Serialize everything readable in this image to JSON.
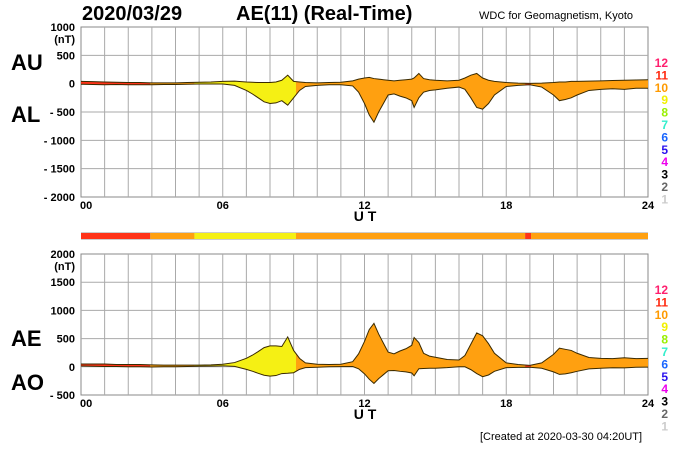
{
  "header": {
    "date": "2020/03/29",
    "title": "AE(11) (Real-Time)",
    "source": "WDC for Geomagnetism, Kyoto"
  },
  "footer": "[Created at 2020-03-30 04:20UT]",
  "chart_data": [
    {
      "type": "area",
      "name": "AU/AL",
      "series_labels": [
        "AU",
        "AL"
      ],
      "unit_label": "(nT)",
      "xlabel": "U T",
      "ylim": [
        -2000,
        1000
      ],
      "yticks": [
        1000,
        500,
        0,
        -500,
        -1000,
        -1500,
        -2000
      ],
      "ytick_labels": [
        "1000",
        "500",
        "0",
        "- 500",
        "- 1000",
        "- 1500",
        "- 2000"
      ],
      "xlim": [
        0,
        24
      ],
      "xticks": [
        0,
        6,
        12,
        18,
        24
      ],
      "xtick_labels": [
        "00",
        "06",
        "12",
        "18",
        "24"
      ],
      "grid": true
    },
    {
      "type": "area",
      "name": "AE/AO",
      "series_labels": [
        "AE",
        "AO"
      ],
      "unit_label": "(nT)",
      "xlabel": "U T",
      "ylim": [
        -500,
        2000
      ],
      "yticks": [
        2000,
        1500,
        1000,
        500,
        0,
        -500
      ],
      "ytick_labels": [
        "2000",
        "1500",
        "1000",
        "500",
        "0",
        "- 500"
      ],
      "xlim": [
        0,
        24
      ],
      "xticks": [
        0,
        6,
        12,
        18,
        24
      ],
      "xtick_labels": [
        "00",
        "06",
        "12",
        "18",
        "24"
      ],
      "grid": true
    }
  ],
  "series": {
    "t": [
      0,
      0.5,
      1,
      1.5,
      2,
      2.5,
      3,
      3.5,
      4,
      4.5,
      5,
      5.5,
      6,
      6.5,
      7,
      7.25,
      7.5,
      7.75,
      8,
      8.25,
      8.5,
      8.75,
      9,
      9.25,
      9.5,
      10,
      10.5,
      11,
      11.5,
      11.75,
      12,
      12.2,
      12.4,
      12.6,
      12.8,
      13,
      13.25,
      13.5,
      13.75,
      14,
      14.1,
      14.3,
      14.5,
      14.75,
      15,
      15.5,
      16,
      16.25,
      16.5,
      16.75,
      17,
      17.25,
      17.5,
      18,
      18.5,
      19,
      19.5,
      20,
      20.25,
      20.5,
      20.75,
      21,
      21.5,
      22,
      22.5,
      23,
      23.5,
      24
    ],
    "AU": [
      40,
      35,
      30,
      25,
      20,
      20,
      15,
      15,
      15,
      20,
      25,
      30,
      40,
      45,
      30,
      25,
      20,
      20,
      20,
      30,
      60,
      150,
      40,
      30,
      20,
      15,
      20,
      25,
      50,
      80,
      100,
      110,
      90,
      80,
      70,
      60,
      50,
      60,
      70,
      80,
      100,
      180,
      90,
      70,
      60,
      50,
      60,
      100,
      150,
      180,
      100,
      60,
      40,
      20,
      10,
      5,
      10,
      20,
      30,
      30,
      40,
      40,
      45,
      50,
      55,
      60,
      65,
      70
    ],
    "AL": [
      -10,
      -15,
      -20,
      -15,
      -20,
      -20,
      -20,
      -15,
      -15,
      -10,
      -5,
      -5,
      -5,
      -30,
      -120,
      -180,
      -250,
      -320,
      -350,
      -340,
      -300,
      -380,
      -250,
      -120,
      -50,
      -30,
      -20,
      -20,
      -40,
      -150,
      -350,
      -550,
      -680,
      -500,
      -350,
      -200,
      -180,
      -220,
      -250,
      -300,
      -420,
      -250,
      -150,
      -120,
      -110,
      -80,
      -60,
      -100,
      -250,
      -420,
      -450,
      -350,
      -200,
      -50,
      -30,
      -20,
      -60,
      -200,
      -300,
      -280,
      -250,
      -200,
      -120,
      -100,
      -90,
      -100,
      -80,
      -80
    ]
  },
  "activity_segments": [
    {
      "start": 0,
      "end": 2.93,
      "level": 11
    },
    {
      "start": 2.93,
      "end": 4.8,
      "level": 10
    },
    {
      "start": 4.8,
      "end": 9.1,
      "level": 9
    },
    {
      "start": 9.1,
      "end": 18.8,
      "level": 10
    },
    {
      "start": 18.8,
      "end": 19.05,
      "level": 11
    },
    {
      "start": 19.05,
      "end": 24,
      "level": 10
    }
  ],
  "legend": [
    {
      "label": "12",
      "color": "#ff1f6e"
    },
    {
      "label": "11",
      "color": "#ff2a10"
    },
    {
      "label": "10",
      "color": "#ff9a00"
    },
    {
      "label": "9",
      "color": "#f2f000"
    },
    {
      "label": "8",
      "color": "#99f000"
    },
    {
      "label": "7",
      "color": "#33eecc"
    },
    {
      "label": "6",
      "color": "#1a66ff"
    },
    {
      "label": "5",
      "color": "#2a10ee"
    },
    {
      "label": "4",
      "color": "#ee00ee"
    },
    {
      "label": "3",
      "color": "#000000"
    },
    {
      "label": "2",
      "color": "#666666"
    },
    {
      "label": "1",
      "color": "#cccccc"
    }
  ],
  "fill_colors": {
    "11": "#ff3318",
    "10": "#ffa010",
    "9": "#f5f014"
  }
}
